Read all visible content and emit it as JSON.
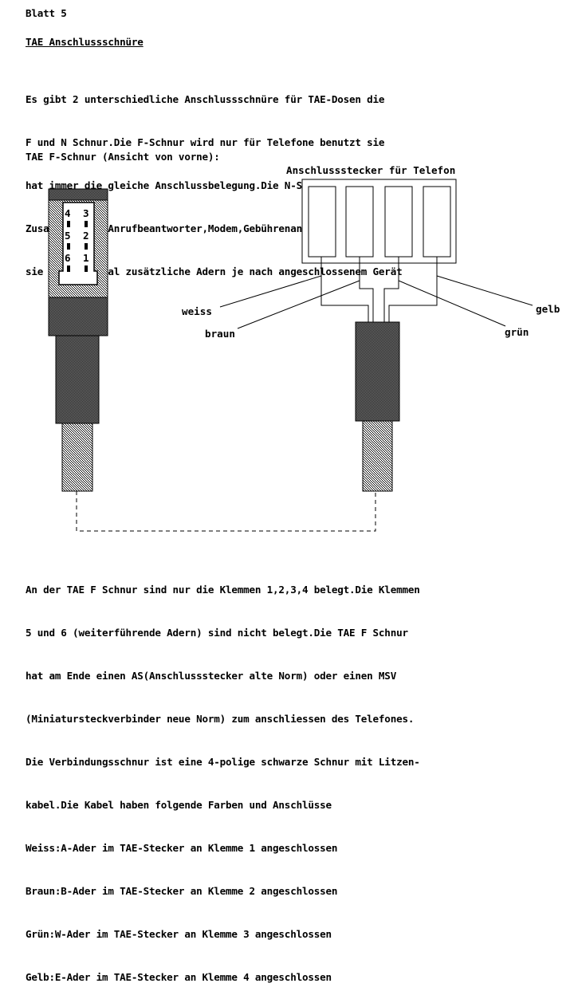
{
  "sheet": "Blatt 5",
  "heading": "TAE Anschlussschnüre",
  "intro_lines": [
    "Es gibt 2 unterschiedliche Anschlussschnüre für TAE-Dosen die",
    "F und N Schnur.Die F-Schnur wird nur für Telefone benutzt sie",
    "hat immer die gleiche Anschlussbelegung.Die N-Schnur wird für",
    "Zusatzgeräte (Anrufbeantworter,Modem,Gebührenanzeiger)benutzt",
    "sie hat manchmal zusätzliche Adern je nach angeschlossenem Gerät"
  ],
  "figure_caption": "TAE F-Schnur (Ansicht von vorne):",
  "plug_title": "Anschlussstecker für Telefon",
  "pins": {
    "left": [
      "4",
      "5",
      "6"
    ],
    "right": [
      "3",
      "2",
      "1"
    ]
  },
  "wires": {
    "weiss": "weiss",
    "braun": "braun",
    "gelb": "gelb",
    "gruen": "grün"
  },
  "body_lines": [
    "An der TAE F Schnur sind nur die Klemmen 1,2,3,4 belegt.Die Klemmen",
    "5 und 6 (weiterführende Adern) sind nicht belegt.Die TAE F Schnur",
    "hat am Ende einen AS(Anschlussstecker alte Norm) oder einen MSV",
    "(Miniatursteckverbinder neue Norm) zum anschliessen des Telefones.",
    "Die Verbindungsschnur ist eine 4-polige schwarze Schnur mit Litzen-",
    "kabel.Die Kabel haben folgende Farben und Anschlüsse",
    "Weiss:A-Ader im TAE-Stecker an Klemme 1 angeschlossen",
    "Braun:B-Ader im TAE-Stecker an Klemme 2 angeschlossen",
    "Grün:W-Ader im TAE-Stecker an Klemme 3 angeschlossen",
    "Gelb:E-Ader im TAE-Stecker an Klemme 4 angeschlossen"
  ]
}
